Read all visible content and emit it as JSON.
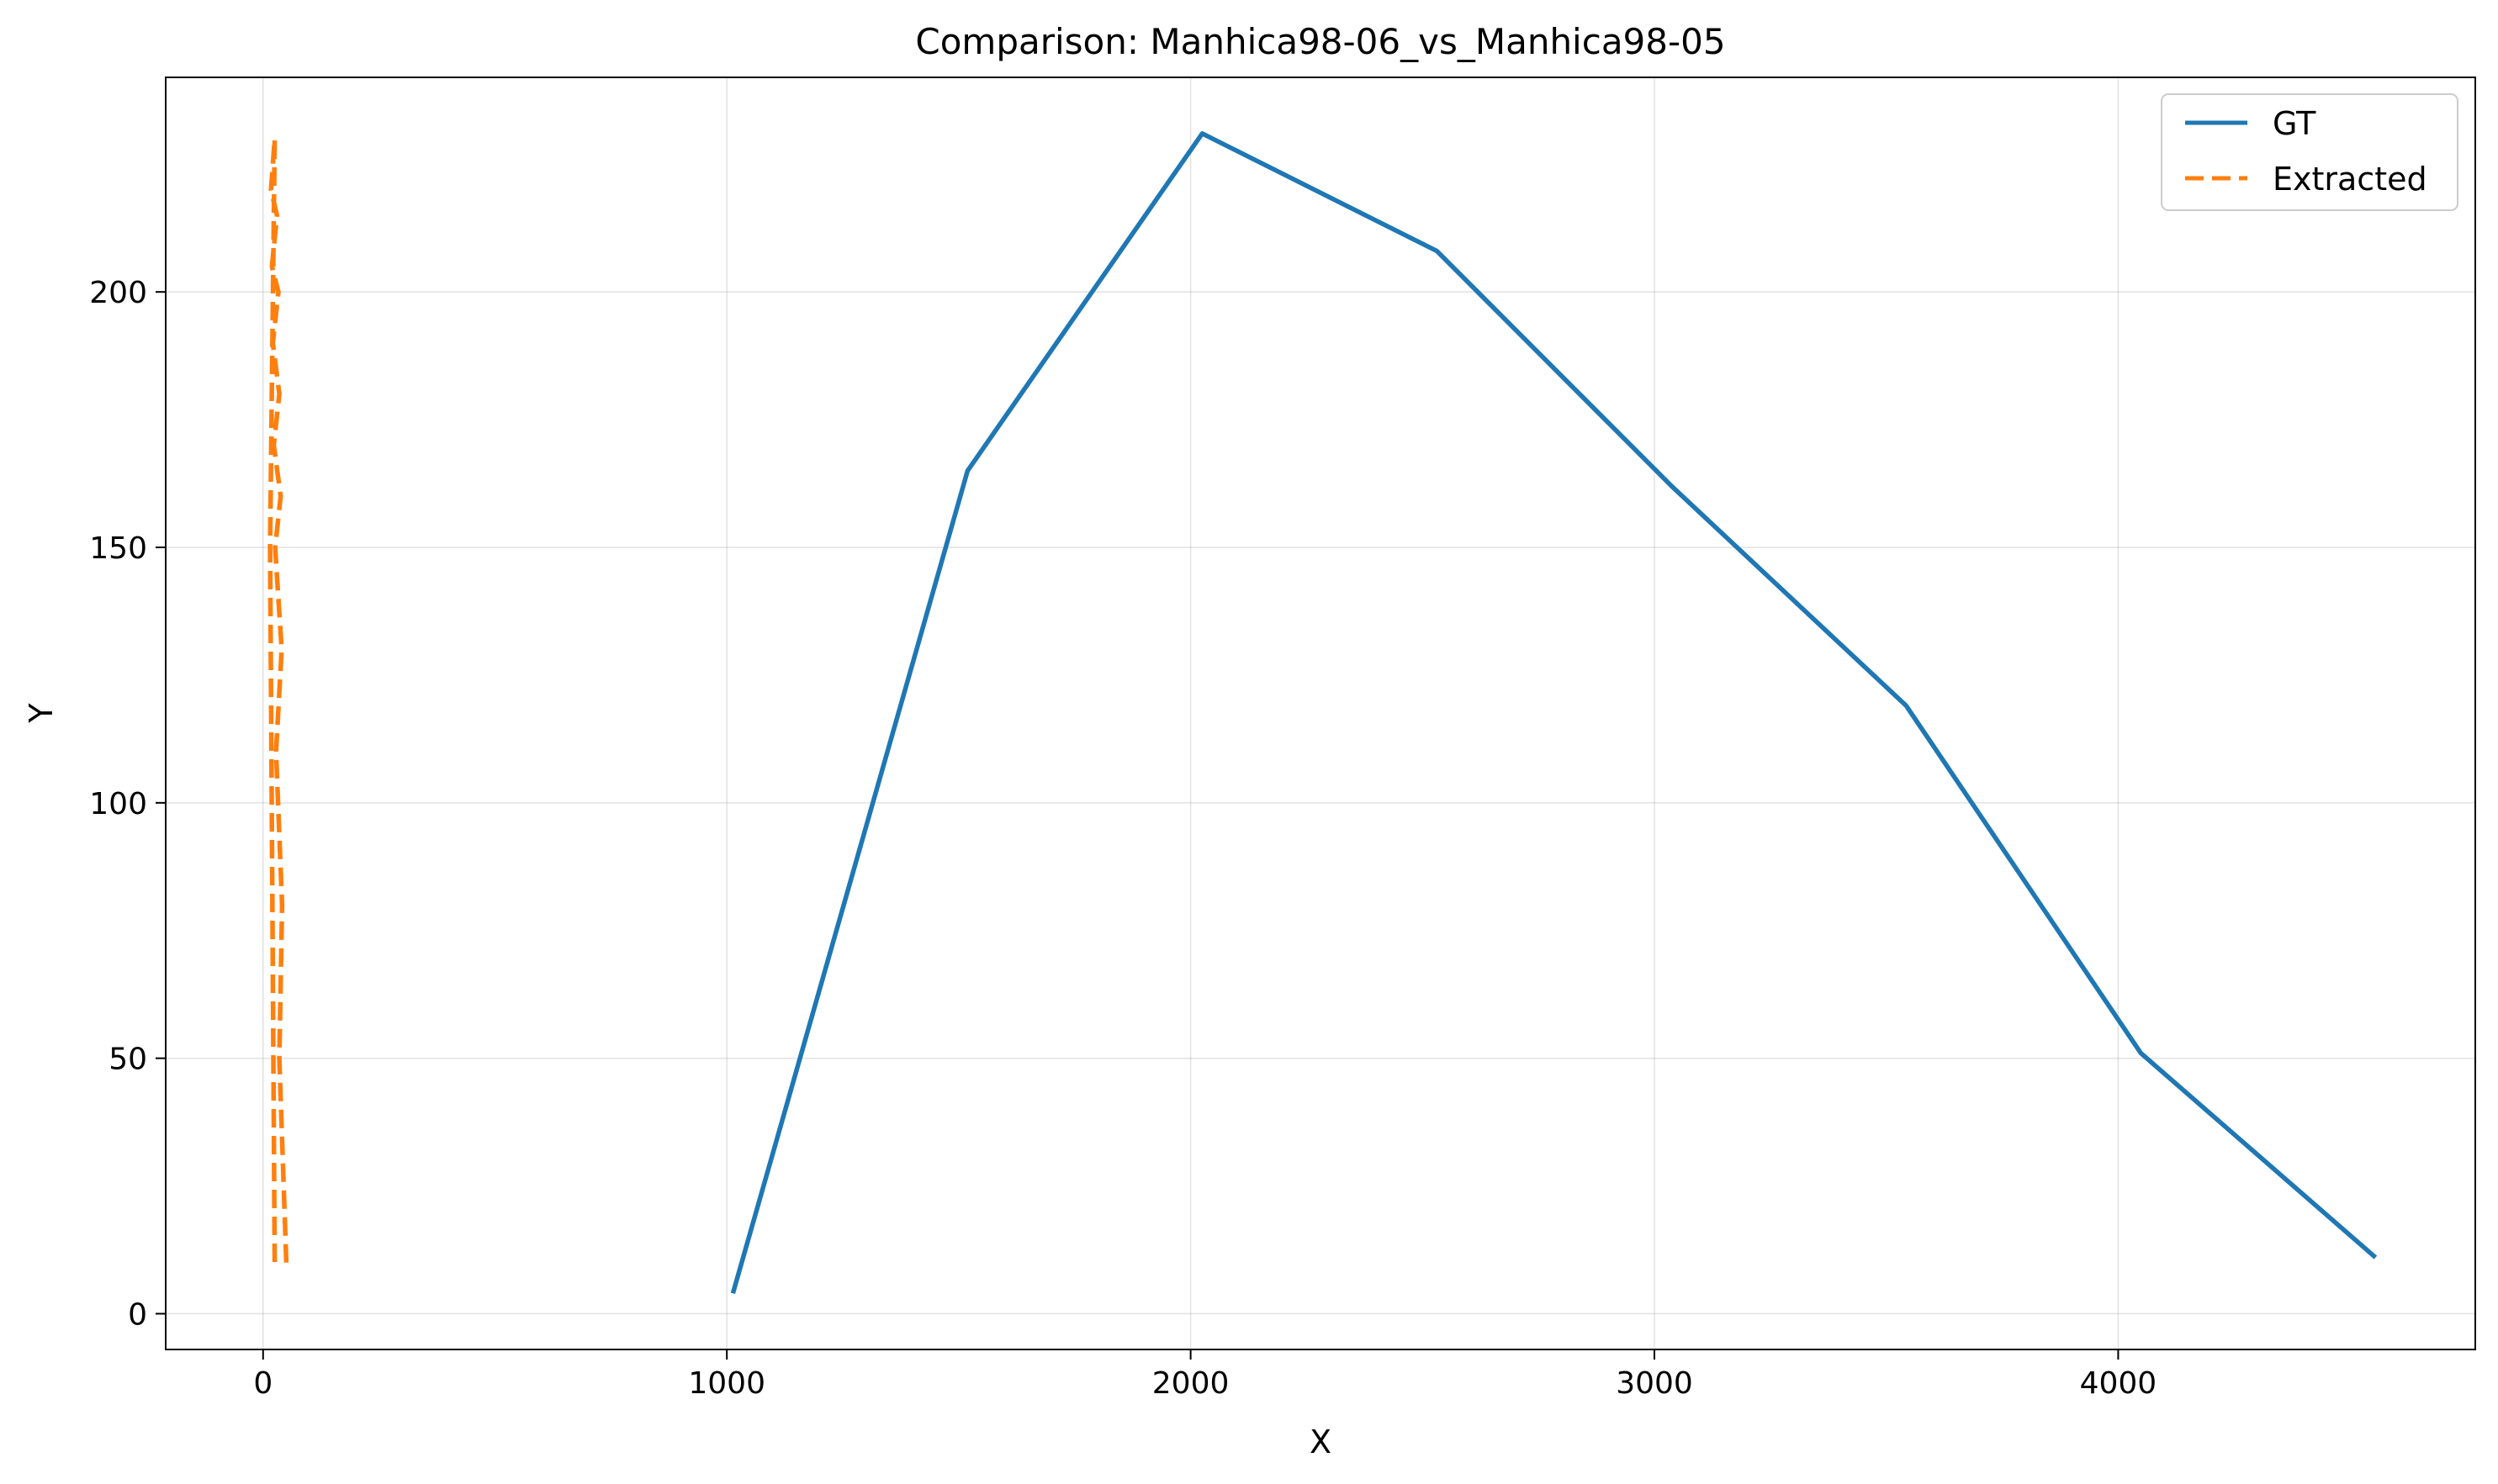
{
  "chart_data": {
    "type": "line",
    "title": "Comparison: Manhica98-06_vs_Manhica98-05",
    "xlabel": "X",
    "ylabel": "Y",
    "xlim": [
      -210,
      4770
    ],
    "ylim": [
      -7,
      242
    ],
    "xticks": [
      0,
      1000,
      2000,
      3000,
      4000
    ],
    "yticks": [
      0,
      50,
      100,
      150,
      200
    ],
    "grid": true,
    "legend_position": "top-right",
    "series": [
      {
        "name": "GT",
        "color": "#1f77b4",
        "style": "solid",
        "x": [
          1013,
          1519,
          2025,
          2531,
          3037,
          3543,
          4049,
          4555
        ],
        "y": [
          4,
          165,
          231,
          208,
          162,
          119,
          51,
          11
        ]
      },
      {
        "name": "Extracted",
        "color": "#ff7f0e",
        "style": "dashed",
        "x": [
          50,
          35,
          41,
          28,
          40,
          26,
          38,
          23,
          35,
          21,
          33,
          19,
          30,
          17,
          25,
          15,
          25
        ],
        "y": [
          10,
          50,
          80,
          110,
          130,
          150,
          160,
          170,
          180,
          190,
          200,
          205,
          215,
          220,
          230,
          150,
          10
        ]
      }
    ]
  }
}
